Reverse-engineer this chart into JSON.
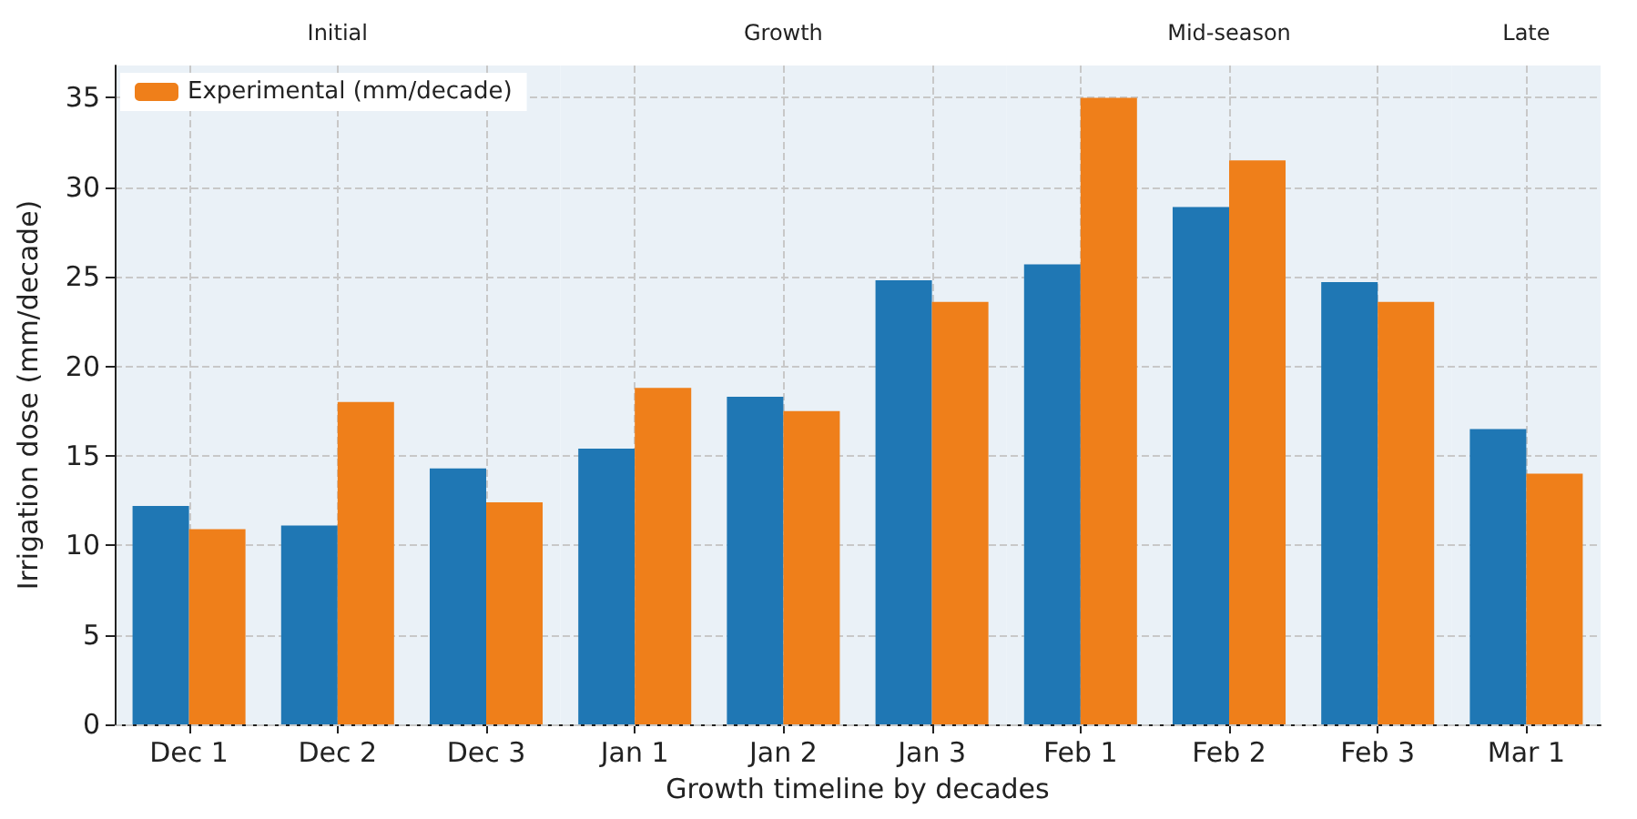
{
  "chart_data": {
    "type": "bar",
    "xlabel": "Growth timeline by decades",
    "ylabel": "Irrigation dose (mm/decade)",
    "categories": [
      "Dec 1",
      "Dec 2",
      "Dec 3",
      "Jan 1",
      "Jan 2",
      "Jan 3",
      "Feb 1",
      "Feb 2",
      "Feb 3",
      "Mar 1"
    ],
    "series": [
      {
        "color": "#1f77b4",
        "values": [
          12.2,
          11.1,
          14.3,
          15.4,
          18.3,
          24.8,
          25.7,
          28.9,
          24.7,
          16.5
        ]
      },
      {
        "name": "Experimental (mm/decade)",
        "color": "#ef7f1a",
        "values": [
          10.9,
          18.0,
          12.4,
          18.8,
          17.5,
          23.6,
          35.0,
          31.5,
          23.6,
          14.0
        ]
      }
    ],
    "ylim": [
      0,
      36.8
    ],
    "yticks": [
      0,
      5,
      10,
      15,
      20,
      25,
      30,
      35
    ],
    "bands": [
      {
        "axis": "x",
        "from": "Dec 1",
        "to": "Dec 3",
        "label": "Initial",
        "color": "#eaf1f7"
      },
      {
        "axis": "x",
        "from": "Jan 1",
        "to": "Jan 3",
        "label": "Growth",
        "color": "#eaf1f7"
      },
      {
        "axis": "x",
        "from": "Feb 1",
        "to": "Feb 3",
        "label": "Mid-season",
        "color": "#eaf1f7"
      },
      {
        "axis": "x",
        "from": "Mar 1",
        "to": "Mar 1",
        "label": "Late",
        "color": "#eaf1f7"
      }
    ],
    "grid": true,
    "legend": "top left"
  }
}
